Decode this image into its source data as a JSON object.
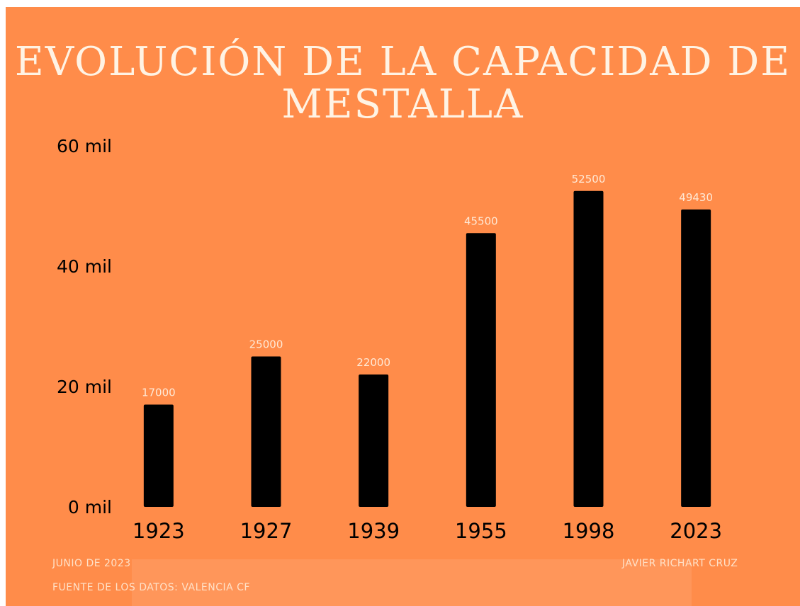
{
  "title": {
    "line1": "EVOLUCIÓN DE LA CAPACIDAD DE",
    "line2": "MESTALLA"
  },
  "colors": {
    "background": "#FF8C4A",
    "bar": "#000000",
    "title": "#FFF3E4",
    "data_label": "#FFE9D6",
    "axis_text": "#000000",
    "footer_text": "#FFE1C8"
  },
  "chart_data": {
    "type": "bar",
    "categories": [
      "1923",
      "1927",
      "1939",
      "1955",
      "1998",
      "2023"
    ],
    "values": [
      17000,
      25000,
      22000,
      45500,
      52500,
      49430
    ],
    "data_labels": [
      "17000",
      "25000",
      "22000",
      "45500",
      "52500",
      "49430"
    ],
    "title": "EVOLUCIÓN DE LA CAPACIDAD DE MESTALLA",
    "xlabel": "",
    "ylabel": "",
    "ylim": [
      0,
      60000
    ],
    "yticks": [
      0,
      20000,
      40000,
      60000
    ],
    "ytick_labels": [
      "0 mil",
      "20 mil",
      "40 mil",
      "60 mil"
    ],
    "grid": false,
    "legend": "none"
  },
  "footer": {
    "date": "JUNIO DE 2023",
    "author": "JAVIER RICHART CRUZ",
    "source": "FUENTE DE LOS DATOS: VALENCIA CF"
  }
}
